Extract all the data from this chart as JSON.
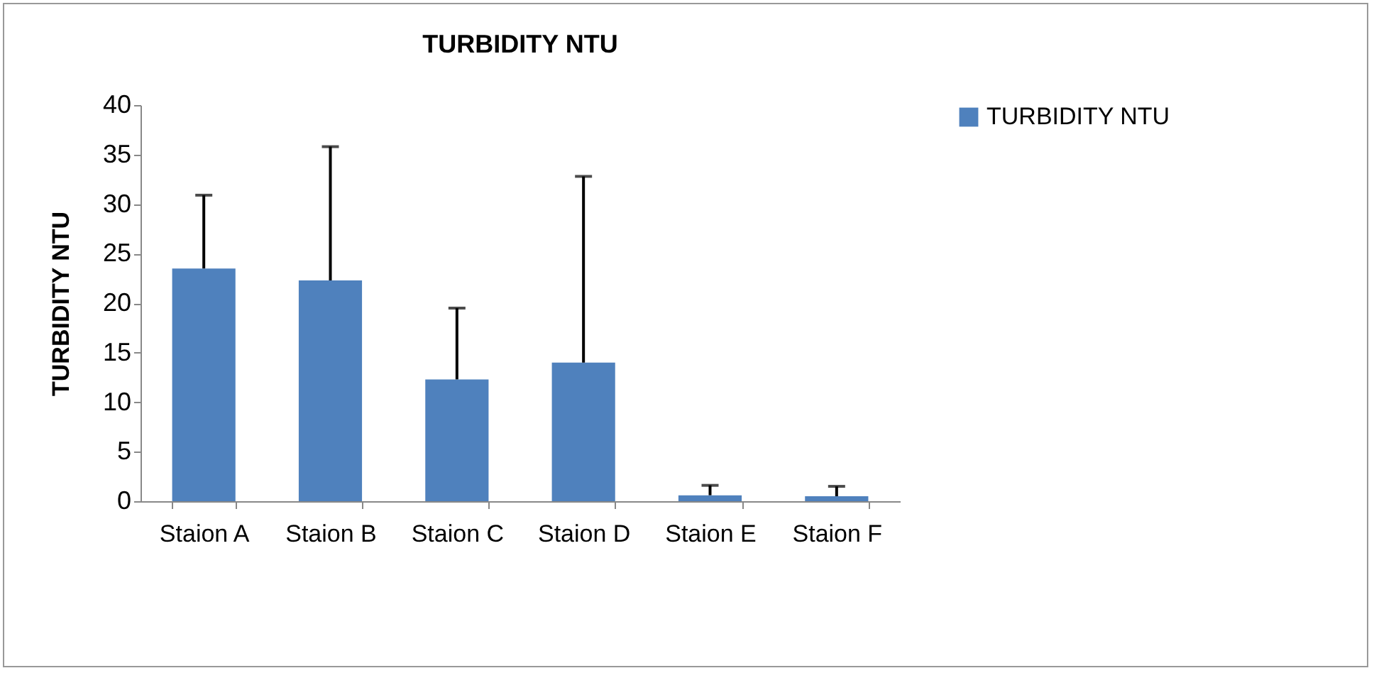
{
  "chart_data": {
    "type": "bar",
    "title": "TURBIDITY NTU",
    "ylabel": "TURBIDITY NTU",
    "categories": [
      "Staion A",
      "Staion B",
      "Staion C",
      "Staion D",
      "Staion E",
      "Staion F"
    ],
    "series": [
      {
        "name": "TURBIDITY NTU",
        "color": "#4f81bd",
        "values": [
          23.5,
          22.3,
          12.3,
          14.0,
          0.6,
          0.5
        ],
        "errors": [
          [
            23.5,
            30.9
          ],
          [
            22.3,
            35.8
          ],
          [
            12.3,
            19.5
          ],
          [
            14.0,
            32.8
          ],
          [
            0.6,
            1.6
          ],
          [
            0.5,
            1.5
          ]
        ]
      }
    ],
    "ylim": [
      0,
      40
    ],
    "yticks": [
      0,
      5,
      10,
      15,
      20,
      25,
      30,
      35,
      40
    ],
    "grid": false,
    "legend": "right"
  }
}
